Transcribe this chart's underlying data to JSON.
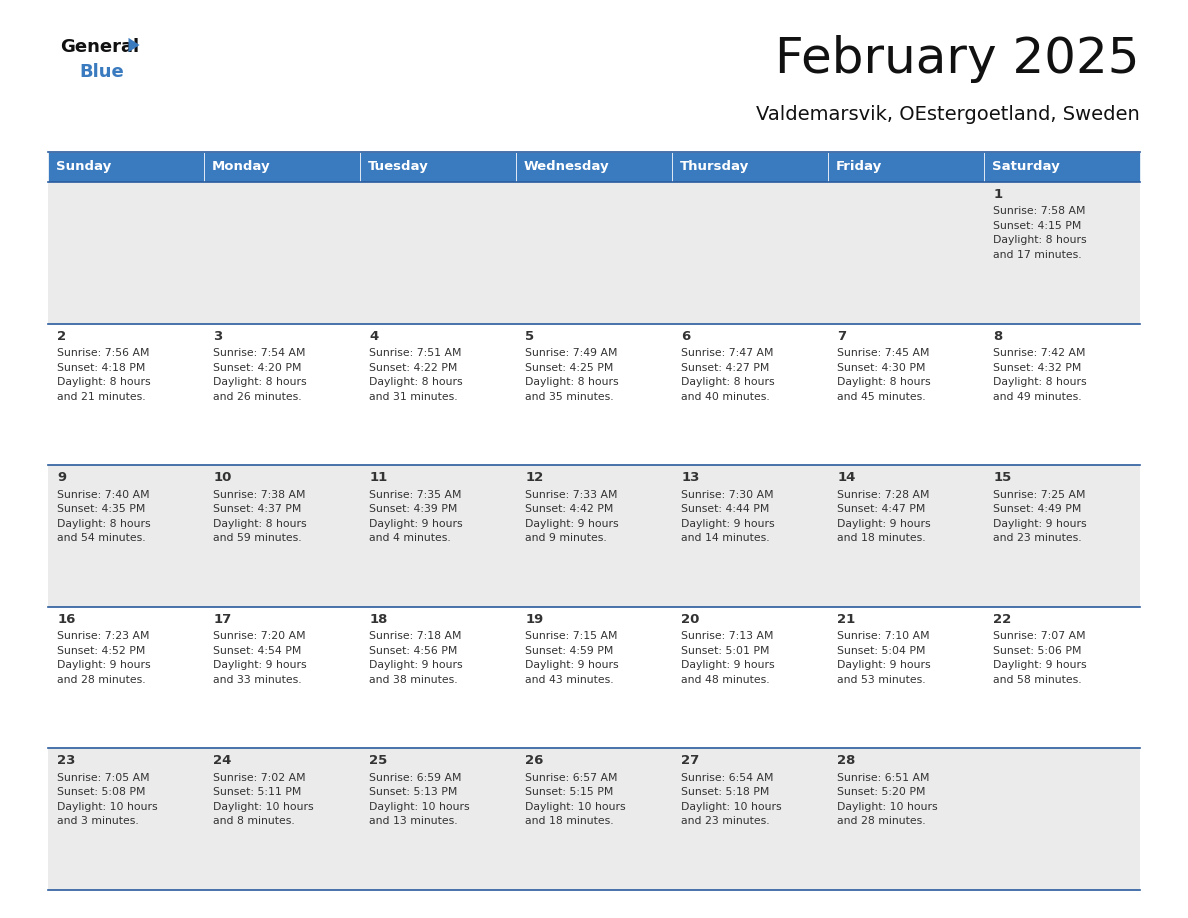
{
  "title": "February 2025",
  "subtitle": "Valdemarsvik, OEstergoetland, Sweden",
  "header_color": "#3a7abf",
  "header_text_color": "#ffffff",
  "bg_colors": [
    "#ebebeb",
    "#ffffff",
    "#ebebeb",
    "#ffffff",
    "#ebebeb"
  ],
  "separator_color": "#2a5b9e",
  "text_color": "#333333",
  "day_names": [
    "Sunday",
    "Monday",
    "Tuesday",
    "Wednesday",
    "Thursday",
    "Friday",
    "Saturday"
  ],
  "weeks": [
    [
      {
        "day": null,
        "sunrise": null,
        "sunset": null,
        "daylight": null
      },
      {
        "day": null,
        "sunrise": null,
        "sunset": null,
        "daylight": null
      },
      {
        "day": null,
        "sunrise": null,
        "sunset": null,
        "daylight": null
      },
      {
        "day": null,
        "sunrise": null,
        "sunset": null,
        "daylight": null
      },
      {
        "day": null,
        "sunrise": null,
        "sunset": null,
        "daylight": null
      },
      {
        "day": null,
        "sunrise": null,
        "sunset": null,
        "daylight": null
      },
      {
        "day": 1,
        "sunrise": "7:58 AM",
        "sunset": "4:15 PM",
        "daylight": "8 hours\nand 17 minutes."
      }
    ],
    [
      {
        "day": 2,
        "sunrise": "7:56 AM",
        "sunset": "4:18 PM",
        "daylight": "8 hours\nand 21 minutes."
      },
      {
        "day": 3,
        "sunrise": "7:54 AM",
        "sunset": "4:20 PM",
        "daylight": "8 hours\nand 26 minutes."
      },
      {
        "day": 4,
        "sunrise": "7:51 AM",
        "sunset": "4:22 PM",
        "daylight": "8 hours\nand 31 minutes."
      },
      {
        "day": 5,
        "sunrise": "7:49 AM",
        "sunset": "4:25 PM",
        "daylight": "8 hours\nand 35 minutes."
      },
      {
        "day": 6,
        "sunrise": "7:47 AM",
        "sunset": "4:27 PM",
        "daylight": "8 hours\nand 40 minutes."
      },
      {
        "day": 7,
        "sunrise": "7:45 AM",
        "sunset": "4:30 PM",
        "daylight": "8 hours\nand 45 minutes."
      },
      {
        "day": 8,
        "sunrise": "7:42 AM",
        "sunset": "4:32 PM",
        "daylight": "8 hours\nand 49 minutes."
      }
    ],
    [
      {
        "day": 9,
        "sunrise": "7:40 AM",
        "sunset": "4:35 PM",
        "daylight": "8 hours\nand 54 minutes."
      },
      {
        "day": 10,
        "sunrise": "7:38 AM",
        "sunset": "4:37 PM",
        "daylight": "8 hours\nand 59 minutes."
      },
      {
        "day": 11,
        "sunrise": "7:35 AM",
        "sunset": "4:39 PM",
        "daylight": "9 hours\nand 4 minutes."
      },
      {
        "day": 12,
        "sunrise": "7:33 AM",
        "sunset": "4:42 PM",
        "daylight": "9 hours\nand 9 minutes."
      },
      {
        "day": 13,
        "sunrise": "7:30 AM",
        "sunset": "4:44 PM",
        "daylight": "9 hours\nand 14 minutes."
      },
      {
        "day": 14,
        "sunrise": "7:28 AM",
        "sunset": "4:47 PM",
        "daylight": "9 hours\nand 18 minutes."
      },
      {
        "day": 15,
        "sunrise": "7:25 AM",
        "sunset": "4:49 PM",
        "daylight": "9 hours\nand 23 minutes."
      }
    ],
    [
      {
        "day": 16,
        "sunrise": "7:23 AM",
        "sunset": "4:52 PM",
        "daylight": "9 hours\nand 28 minutes."
      },
      {
        "day": 17,
        "sunrise": "7:20 AM",
        "sunset": "4:54 PM",
        "daylight": "9 hours\nand 33 minutes."
      },
      {
        "day": 18,
        "sunrise": "7:18 AM",
        "sunset": "4:56 PM",
        "daylight": "9 hours\nand 38 minutes."
      },
      {
        "day": 19,
        "sunrise": "7:15 AM",
        "sunset": "4:59 PM",
        "daylight": "9 hours\nand 43 minutes."
      },
      {
        "day": 20,
        "sunrise": "7:13 AM",
        "sunset": "5:01 PM",
        "daylight": "9 hours\nand 48 minutes."
      },
      {
        "day": 21,
        "sunrise": "7:10 AM",
        "sunset": "5:04 PM",
        "daylight": "9 hours\nand 53 minutes."
      },
      {
        "day": 22,
        "sunrise": "7:07 AM",
        "sunset": "5:06 PM",
        "daylight": "9 hours\nand 58 minutes."
      }
    ],
    [
      {
        "day": 23,
        "sunrise": "7:05 AM",
        "sunset": "5:08 PM",
        "daylight": "10 hours\nand 3 minutes."
      },
      {
        "day": 24,
        "sunrise": "7:02 AM",
        "sunset": "5:11 PM",
        "daylight": "10 hours\nand 8 minutes."
      },
      {
        "day": 25,
        "sunrise": "6:59 AM",
        "sunset": "5:13 PM",
        "daylight": "10 hours\nand 13 minutes."
      },
      {
        "day": 26,
        "sunrise": "6:57 AM",
        "sunset": "5:15 PM",
        "daylight": "10 hours\nand 18 minutes."
      },
      {
        "day": 27,
        "sunrise": "6:54 AM",
        "sunset": "5:18 PM",
        "daylight": "10 hours\nand 23 minutes."
      },
      {
        "day": 28,
        "sunrise": "6:51 AM",
        "sunset": "5:20 PM",
        "daylight": "10 hours\nand 28 minutes."
      },
      {
        "day": null,
        "sunrise": null,
        "sunset": null,
        "daylight": null
      }
    ]
  ]
}
